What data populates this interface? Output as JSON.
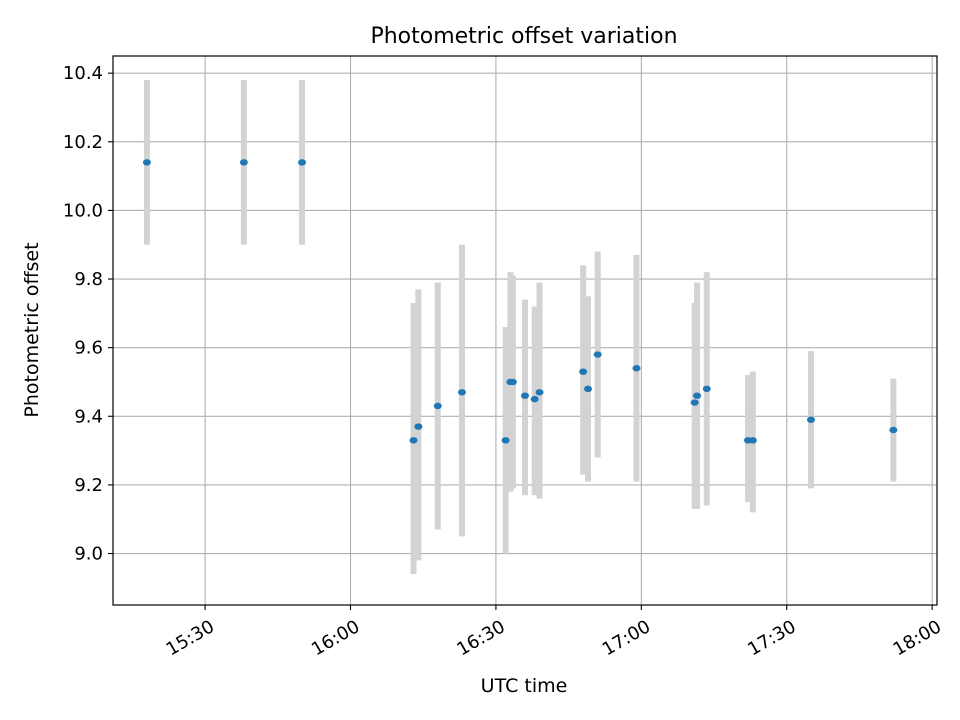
{
  "chart_data": {
    "type": "scatter",
    "title": "Photometric offset variation",
    "xlabel": "UTC time",
    "ylabel": "Photometric offset",
    "grid": true,
    "x_unit": "UTC time (HH:MM)",
    "xlim": [
      "15:11",
      "18:01"
    ],
    "ylim": [
      8.85,
      10.45
    ],
    "x_ticks": [
      "15:30",
      "16:00",
      "16:30",
      "17:00",
      "17:30",
      "18:00"
    ],
    "y_ticks": [
      "9.0",
      "9.2",
      "9.4",
      "9.6",
      "9.8",
      "10.0",
      "10.2",
      "10.4"
    ],
    "marker_color": "#1f77b4",
    "errorbar_color": "#d3d3d3",
    "points": [
      {
        "x": "15:18",
        "y": 10.14,
        "ylow": 9.9,
        "yhigh": 10.38
      },
      {
        "x": "15:38",
        "y": 10.14,
        "ylow": 9.9,
        "yhigh": 10.38
      },
      {
        "x": "15:50",
        "y": 10.14,
        "ylow": 9.9,
        "yhigh": 10.38
      },
      {
        "x": "16:13",
        "y": 9.33,
        "ylow": 8.94,
        "yhigh": 9.73
      },
      {
        "x": "16:14",
        "y": 9.37,
        "ylow": 8.98,
        "yhigh": 9.77
      },
      {
        "x": "16:18",
        "y": 9.43,
        "ylow": 9.07,
        "yhigh": 9.79
      },
      {
        "x": "16:23",
        "y": 9.47,
        "ylow": 9.05,
        "yhigh": 9.9
      },
      {
        "x": "16:32",
        "y": 9.33,
        "ylow": 9.0,
        "yhigh": 9.66
      },
      {
        "x": "16:33",
        "y": 9.5,
        "ylow": 9.18,
        "yhigh": 9.82
      },
      {
        "x": "16:33.5",
        "y": 9.5,
        "ylow": 9.19,
        "yhigh": 9.81
      },
      {
        "x": "16:36",
        "y": 9.46,
        "ylow": 9.17,
        "yhigh": 9.74
      },
      {
        "x": "16:38",
        "y": 9.45,
        "ylow": 9.17,
        "yhigh": 9.72
      },
      {
        "x": "16:39",
        "y": 9.47,
        "ylow": 9.16,
        "yhigh": 9.79
      },
      {
        "x": "16:48",
        "y": 9.53,
        "ylow": 9.23,
        "yhigh": 9.84
      },
      {
        "x": "16:49",
        "y": 9.48,
        "ylow": 9.21,
        "yhigh": 9.75
      },
      {
        "x": "16:51",
        "y": 9.58,
        "ylow": 9.28,
        "yhigh": 9.88
      },
      {
        "x": "16:59",
        "y": 9.54,
        "ylow": 9.21,
        "yhigh": 9.87
      },
      {
        "x": "17:11",
        "y": 9.44,
        "ylow": 9.13,
        "yhigh": 9.73
      },
      {
        "x": "17:11.5",
        "y": 9.46,
        "ylow": 9.13,
        "yhigh": 9.79
      },
      {
        "x": "17:13.5",
        "y": 9.48,
        "ylow": 9.14,
        "yhigh": 9.82
      },
      {
        "x": "17:22",
        "y": 9.33,
        "ylow": 9.15,
        "yhigh": 9.52
      },
      {
        "x": "17:23",
        "y": 9.33,
        "ylow": 9.12,
        "yhigh": 9.53
      },
      {
        "x": "17:35",
        "y": 9.39,
        "ylow": 9.19,
        "yhigh": 9.59
      },
      {
        "x": "17:52",
        "y": 9.36,
        "ylow": 9.21,
        "yhigh": 9.51
      }
    ]
  }
}
